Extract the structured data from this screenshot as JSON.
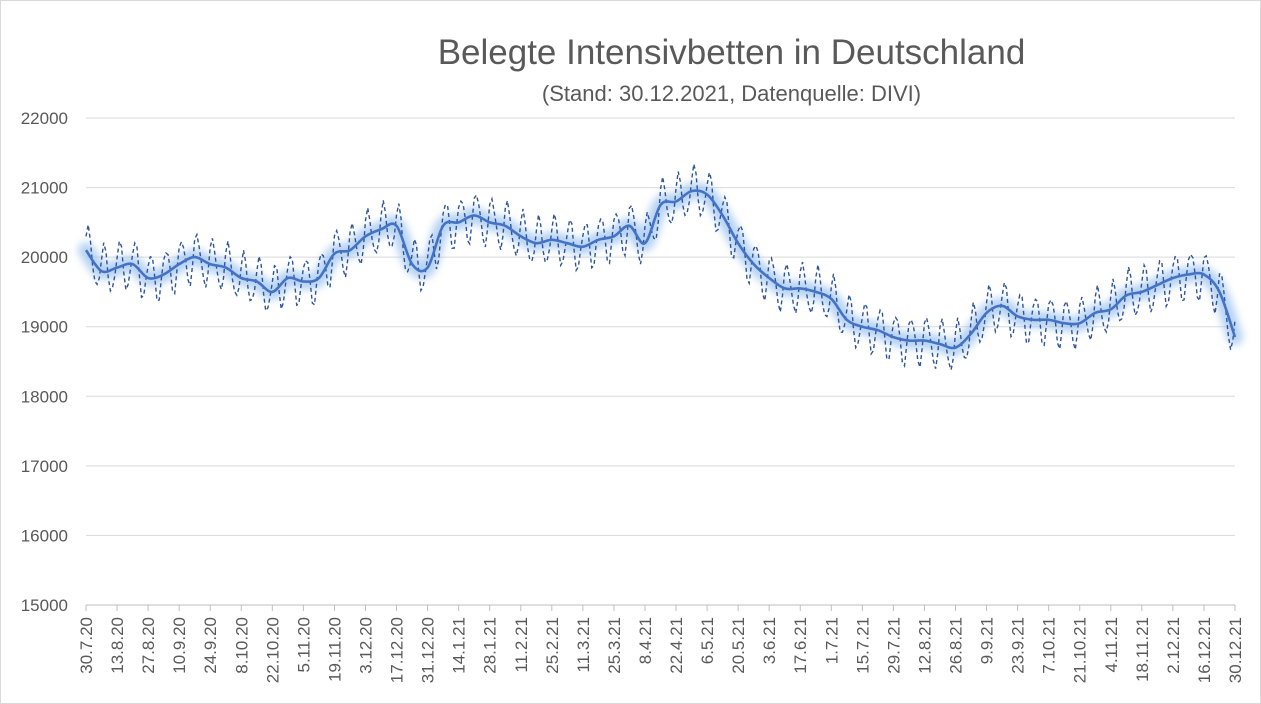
{
  "chart_data": {
    "type": "line",
    "title": "Belegte Intensivbetten in Deutschland",
    "subtitle": "(Stand: 30.12.2021,  Datenquelle: DIVI)",
    "xlabel": "",
    "ylabel": "",
    "ylim": [
      15000,
      22000
    ],
    "yticks": [
      15000,
      16000,
      17000,
      18000,
      19000,
      20000,
      21000,
      22000
    ],
    "x_range": [
      "30.7.20",
      "30.12.21"
    ],
    "x_tick_labels": [
      "30.7.20",
      "13.8.20",
      "27.8.20",
      "10.9.20",
      "24.9.20",
      "8.10.20",
      "22.10.20",
      "5.11.20",
      "19.11.20",
      "3.12.20",
      "17.12.20",
      "31.12.20",
      "14.1.21",
      "28.1.21",
      "11.2.21",
      "25.2.21",
      "11.3.21",
      "25.3.21",
      "8.4.21",
      "22.4.21",
      "6.5.21",
      "20.5.21",
      "3.6.21",
      "17.6.21",
      "1.7.21",
      "15.7.21",
      "29.7.21",
      "12.8.21",
      "26.8.21",
      "9.9.21",
      "23.9.21",
      "7.10.21",
      "21.10.21",
      "4.11.21",
      "18.11.21",
      "2.12.21",
      "16.12.21",
      "30.12.21"
    ],
    "grid": true,
    "legend": "none",
    "colors": {
      "trend": "#4472c4",
      "daily": "#2f5597",
      "glow": "#9dc3f0",
      "grid": "#d9d9d9",
      "axis": "#bfbfbf"
    },
    "series": [
      {
        "style": "solid",
        "x": [
          "30.7.20",
          "6.8.20",
          "13.8.20",
          "20.8.20",
          "27.8.20",
          "3.9.20",
          "10.9.20",
          "17.9.20",
          "24.9.20",
          "1.10.20",
          "8.10.20",
          "15.10.20",
          "22.10.20",
          "29.10.20",
          "5.11.20",
          "12.11.20",
          "19.11.20",
          "26.11.20",
          "3.12.20",
          "10.12.20",
          "17.12.20",
          "24.12.20",
          "31.12.20",
          "7.1.21",
          "14.1.21",
          "21.1.21",
          "28.1.21",
          "4.2.21",
          "11.2.21",
          "18.2.21",
          "25.2.21",
          "4.3.21",
          "11.3.21",
          "18.3.21",
          "25.3.21",
          "1.4.21",
          "8.4.21",
          "15.4.21",
          "22.4.21",
          "29.4.21",
          "6.5.21",
          "13.5.21",
          "20.5.21",
          "27.5.21",
          "3.6.21",
          "10.6.21",
          "17.6.21",
          "24.6.21",
          "1.7.21",
          "8.7.21",
          "15.7.21",
          "22.7.21",
          "29.7.21",
          "5.8.21",
          "12.8.21",
          "19.8.21",
          "26.8.21",
          "2.9.21",
          "9.9.21",
          "16.9.21",
          "23.9.21",
          "30.9.21",
          "7.10.21",
          "14.10.21",
          "21.10.21",
          "28.10.21",
          "4.11.21",
          "11.11.21",
          "18.11.21",
          "25.11.21",
          "2.12.21",
          "9.12.21",
          "16.12.21",
          "23.12.21",
          "30.12.21"
        ],
        "y": [
          20100,
          19800,
          19850,
          19900,
          19700,
          19750,
          19900,
          20000,
          19900,
          19850,
          19700,
          19650,
          19500,
          19700,
          19650,
          19700,
          20050,
          20100,
          20300,
          20400,
          20450,
          19900,
          19850,
          20450,
          20500,
          20600,
          20500,
          20450,
          20300,
          20200,
          20250,
          20200,
          20150,
          20250,
          20300,
          20450,
          20200,
          20750,
          20800,
          20950,
          20900,
          20600,
          20200,
          19900,
          19700,
          19550,
          19550,
          19500,
          19400,
          19100,
          19000,
          18950,
          18850,
          18800,
          18800,
          18750,
          18700,
          18900,
          19200,
          19300,
          19150,
          19100,
          19100,
          19050,
          19050,
          19200,
          19250,
          19450,
          19500,
          19600,
          19700,
          19750,
          19750,
          19500,
          18850
        ]
      },
      {
        "style": "dashed",
        "values_from": "solid series with weekly oscillation of about ±350"
      }
    ]
  }
}
